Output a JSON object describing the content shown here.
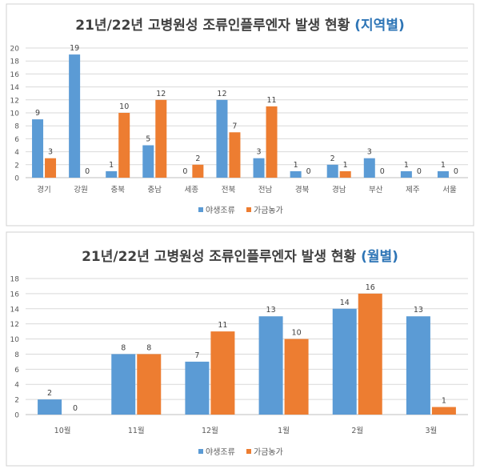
{
  "colors": {
    "wild_birds": "#5b9bd5",
    "poultry": "#ed7d31",
    "title_text": "#404040",
    "title_accent": "#2e75b6",
    "grid": "#d9d9d9"
  },
  "chart_data": [
    {
      "type": "bar",
      "title": "21년/22년 고병원성 조류인플루엔자 발생 현황",
      "title_suffix": "(지역별)",
      "categories": [
        "경기",
        "강원",
        "충북",
        "충남",
        "세종",
        "전북",
        "전남",
        "경북",
        "경남",
        "부산",
        "제주",
        "서울"
      ],
      "series": [
        {
          "name": "야생조류",
          "values": [
            9,
            19,
            1,
            5,
            0,
            12,
            3,
            1,
            2,
            3,
            1,
            1
          ]
        },
        {
          "name": "가금농가",
          "values": [
            3,
            0,
            10,
            12,
            2,
            7,
            11,
            0,
            1,
            0,
            0,
            0
          ]
        }
      ],
      "ylim": [
        0,
        20
      ],
      "yticks": [
        0,
        2,
        4,
        6,
        8,
        10,
        12,
        14,
        16,
        18,
        20
      ],
      "grid": true,
      "legend": "bottom",
      "data_labels": true
    },
    {
      "type": "bar",
      "title": "21년/22년 고병원성 조류인플루엔자 발생 현황",
      "title_suffix": "(월별)",
      "categories": [
        "10월",
        "11월",
        "12월",
        "1월",
        "2월",
        "3월"
      ],
      "series": [
        {
          "name": "야생조류",
          "values": [
            2,
            8,
            7,
            13,
            14,
            13
          ]
        },
        {
          "name": "가금농가",
          "values": [
            0,
            8,
            11,
            10,
            16,
            1
          ]
        }
      ],
      "ylim": [
        0,
        18
      ],
      "yticks": [
        0,
        2,
        4,
        6,
        8,
        10,
        12,
        14,
        16,
        18
      ],
      "grid": true,
      "legend": "bottom",
      "data_labels": true
    }
  ]
}
